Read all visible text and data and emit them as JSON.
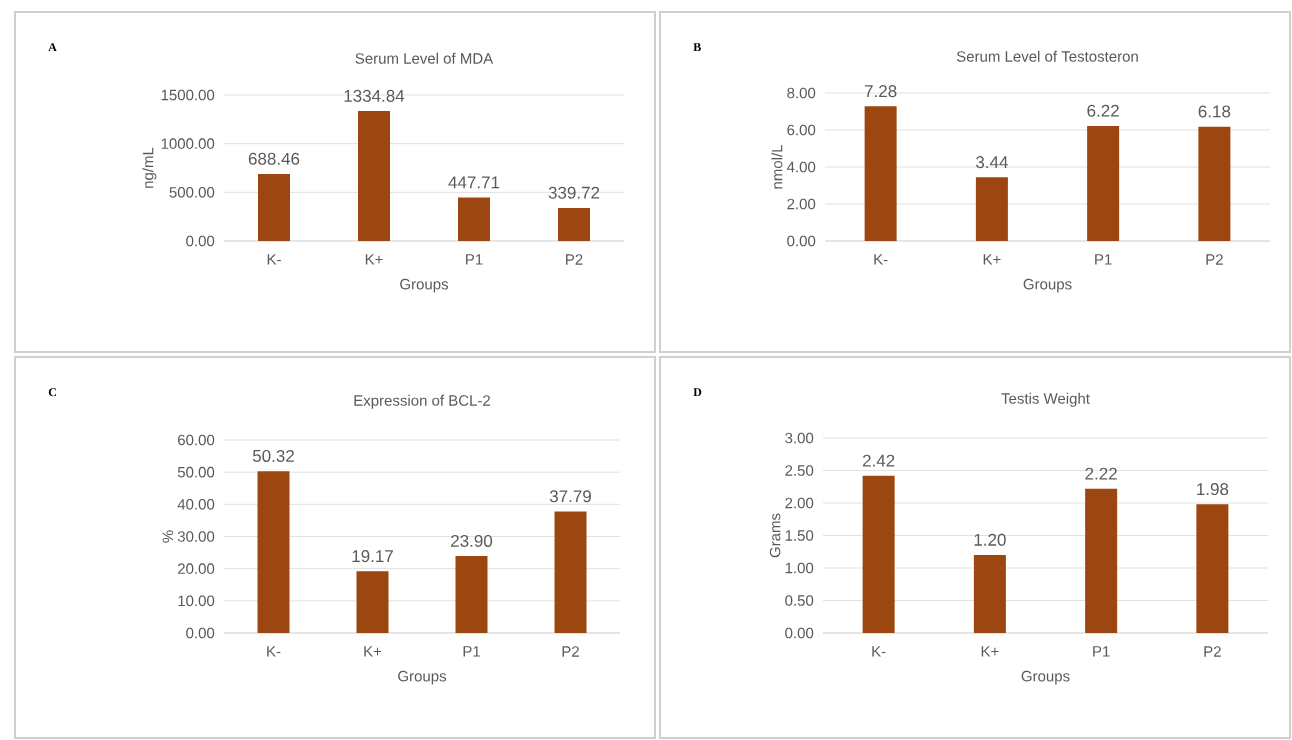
{
  "chart_data": [
    {
      "type": "bar",
      "title": "Serum Level of MDA",
      "xlabel": "Groups",
      "ylabel": "ng/mL",
      "annotations": [
        "A"
      ],
      "categories": [
        "K-",
        "K+",
        "P1",
        "P2"
      ],
      "values": [
        688.46,
        1334.84,
        447.71,
        339.72
      ],
      "value_labels": [
        "688.46",
        "1334.84",
        "447.71",
        "339.72"
      ],
      "color": "#9c4610",
      "ylim": [
        0,
        1500
      ],
      "yticks": [
        {
          "value": 0,
          "label": "0.00"
        },
        {
          "value": 500,
          "label": "500.00"
        },
        {
          "value": 1000,
          "label": "1000.00"
        },
        {
          "value": 1500,
          "label": "1500.00"
        }
      ],
      "grid": "y"
    },
    {
      "type": "bar",
      "title": "Serum Level of Testosteron",
      "xlabel": "Groups",
      "ylabel": "nmol/L",
      "annotations": [
        "B"
      ],
      "categories": [
        "K-",
        "K+",
        "P1",
        "P2"
      ],
      "values": [
        7.28,
        3.44,
        6.22,
        6.18
      ],
      "value_labels": [
        "7.28",
        "3.44",
        "6.22",
        "6.18"
      ],
      "color": "#9c4610",
      "ylim": [
        0,
        8
      ],
      "yticks": [
        {
          "value": 0,
          "label": "0.00"
        },
        {
          "value": 2,
          "label": "2.00"
        },
        {
          "value": 4,
          "label": "4.00"
        },
        {
          "value": 6,
          "label": "6.00"
        },
        {
          "value": 8,
          "label": "8.00"
        }
      ],
      "grid": "y"
    },
    {
      "type": "bar",
      "title": "Expression of BCL-2",
      "xlabel": "Groups",
      "ylabel": "%",
      "annotations": [
        "C"
      ],
      "categories": [
        "K-",
        "K+",
        "P1",
        "P2"
      ],
      "values": [
        50.32,
        19.17,
        23.9,
        37.79
      ],
      "value_labels": [
        "50.32",
        "19.17",
        "23.90",
        "37.79"
      ],
      "color": "#9c4610",
      "ylim": [
        0,
        60
      ],
      "yticks": [
        {
          "value": 0,
          "label": "0.00"
        },
        {
          "value": 10,
          "label": "10.00"
        },
        {
          "value": 20,
          "label": "20.00"
        },
        {
          "value": 30,
          "label": "30.00"
        },
        {
          "value": 40,
          "label": "40.00"
        },
        {
          "value": 50,
          "label": "50.00"
        },
        {
          "value": 60,
          "label": "60.00"
        }
      ],
      "grid": "y"
    },
    {
      "type": "bar",
      "title": "Testis Weight",
      "xlabel": "Groups",
      "ylabel": "Grams",
      "annotations": [
        "D"
      ],
      "categories": [
        "K-",
        "K+",
        "P1",
        "P2"
      ],
      "values": [
        2.42,
        1.2,
        2.22,
        1.98
      ],
      "value_labels": [
        "2.42",
        "1.20",
        "2.22",
        "1.98"
      ],
      "color": "#9c4610",
      "ylim": [
        0,
        3
      ],
      "yticks": [
        {
          "value": 0,
          "label": "0.00"
        },
        {
          "value": 0.5,
          "label": "0.50"
        },
        {
          "value": 1,
          "label": "1.00"
        },
        {
          "value": 1.5,
          "label": "1.50"
        },
        {
          "value": 2,
          "label": "2.00"
        },
        {
          "value": 2.5,
          "label": "2.50"
        },
        {
          "value": 3,
          "label": "3.00"
        }
      ],
      "grid": "y"
    }
  ]
}
